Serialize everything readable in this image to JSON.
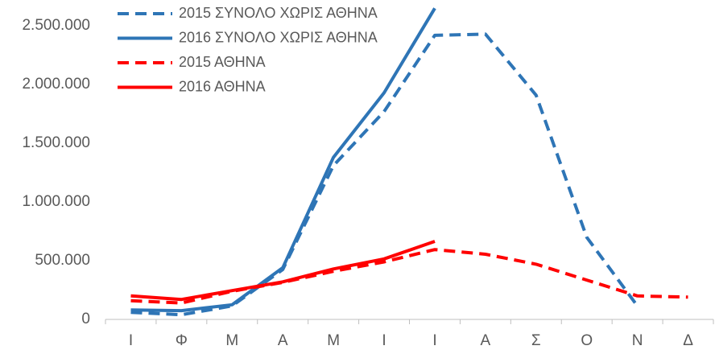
{
  "chart_data": {
    "type": "line",
    "categories": [
      "Ι",
      "Φ",
      "Μ",
      "Α",
      "Μ",
      "Ι",
      "Ι",
      "Α",
      "Σ",
      "Ο",
      "Ν",
      "Δ"
    ],
    "series": [
      {
        "name": "2015 ΣΥΝΟΛΟ ΧΩΡΙΣ ΑΘΗΝΑ",
        "color": "#2e75b6",
        "dash": true,
        "values": [
          60000,
          40000,
          115000,
          425000,
          1310000,
          1770000,
          2420000,
          2430000,
          1910000,
          700000,
          115000,
          null
        ]
      },
      {
        "name": "2016 ΣΥΝΟΛΟ ΧΩΡΙΣ ΑΘΗΝΑ",
        "color": "#2e75b6",
        "dash": false,
        "values": [
          80000,
          75000,
          125000,
          440000,
          1380000,
          1930000,
          2650000,
          null,
          null,
          null,
          null,
          null
        ]
      },
      {
        "name": "2015 ΑΘΗΝΑ",
        "color": "#ff0000",
        "dash": true,
        "values": [
          160000,
          140000,
          240000,
          315000,
          410000,
          490000,
          595000,
          555000,
          470000,
          335000,
          200000,
          190000
        ]
      },
      {
        "name": "2016 ΑΘΗΝΑ",
        "color": "#ff0000",
        "dash": false,
        "values": [
          200000,
          170000,
          245000,
          320000,
          430000,
          515000,
          665000,
          null,
          null,
          null,
          null,
          null
        ]
      }
    ],
    "ylim": [
      0,
      2700000
    ],
    "yticks": [
      0,
      {
        "value": 500000,
        "label": "500.000"
      },
      {
        "value": 1000000,
        "label": "1.000.000"
      },
      {
        "value": 1500000,
        "label": "1.500.000"
      },
      {
        "value": 2000000,
        "label": "2.000.000"
      },
      {
        "value": 2500000,
        "label": "2.500.000"
      }
    ],
    "legend": "top-left"
  }
}
